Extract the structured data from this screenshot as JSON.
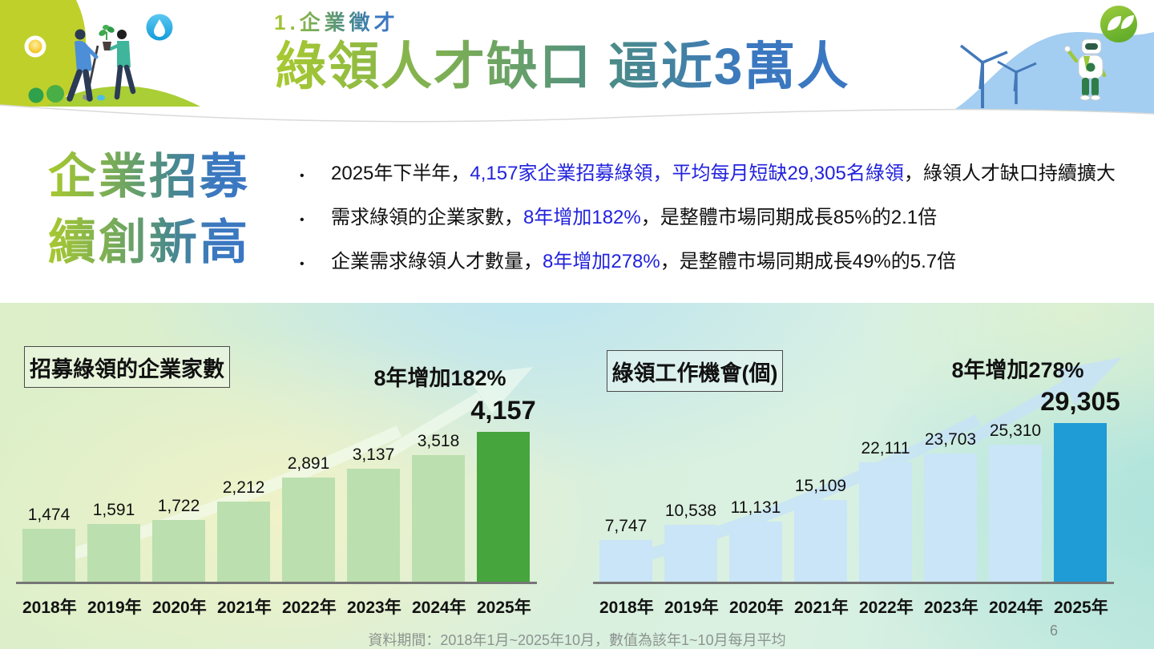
{
  "header": {
    "kicker": "1.企業徵才",
    "title": "綠領人才缺口 逼近3萬人"
  },
  "lead": {
    "heading_line1": "企業招募",
    "heading_line2": "續創新高",
    "bullets": [
      {
        "segments": [
          {
            "t": "2025年下半年，",
            "c": "black"
          },
          {
            "t": "4,157家企業招募綠領，平均每月短缺29,305名綠領",
            "c": "blue"
          },
          {
            "t": "，綠領人才缺口持續擴大",
            "c": "black"
          }
        ]
      },
      {
        "segments": [
          {
            "t": "需求綠領的企業家數，",
            "c": "black"
          },
          {
            "t": "8年增加182%",
            "c": "blue"
          },
          {
            "t": "，是整體市場同期成長85%的2.1倍",
            "c": "black"
          }
        ]
      },
      {
        "segments": [
          {
            "t": "企業需求綠領人才數量，",
            "c": "black"
          },
          {
            "t": "8年增加278%",
            "c": "blue"
          },
          {
            "t": "，是整體市場同期成長49%的5.7倍",
            "c": "black"
          }
        ]
      }
    ]
  },
  "chart_data": [
    {
      "type": "bar",
      "title": "招募綠領的企業家數",
      "increase_label": "8年增加182%",
      "categories": [
        "2018年",
        "2019年",
        "2020年",
        "2021年",
        "2022年",
        "2023年",
        "2024年",
        "2025年"
      ],
      "values": [
        1474,
        1591,
        1722,
        2212,
        2891,
        3137,
        3518,
        4157
      ],
      "highlight_index": 7,
      "bar_color": "#BBDFAE",
      "highlight_color": "#46A53C",
      "ylim": [
        0,
        4500
      ],
      "grid": false,
      "legend": "none"
    },
    {
      "type": "bar",
      "title": "綠領工作機會(個)",
      "increase_label": "8年增加278%",
      "categories": [
        "2018年",
        "2019年",
        "2020年",
        "2021年",
        "2022年",
        "2023年",
        "2024年",
        "2025年"
      ],
      "values": [
        7747,
        10538,
        11131,
        15109,
        22111,
        23703,
        25310,
        29305
      ],
      "highlight_index": 7,
      "bar_color": "#C9E5F7",
      "highlight_color": "#1F9BD5",
      "ylim": [
        0,
        31000
      ],
      "grid": false,
      "legend": "none"
    }
  ],
  "footer": {
    "source": "資料期間：2018年1月~2025年10月，數值為該年1~10月每月平均",
    "page": "6"
  },
  "colors": {
    "accent_blue_text": "#2222DD",
    "gradient_start": "#A8C92F",
    "gradient_end": "#3A77C2"
  }
}
